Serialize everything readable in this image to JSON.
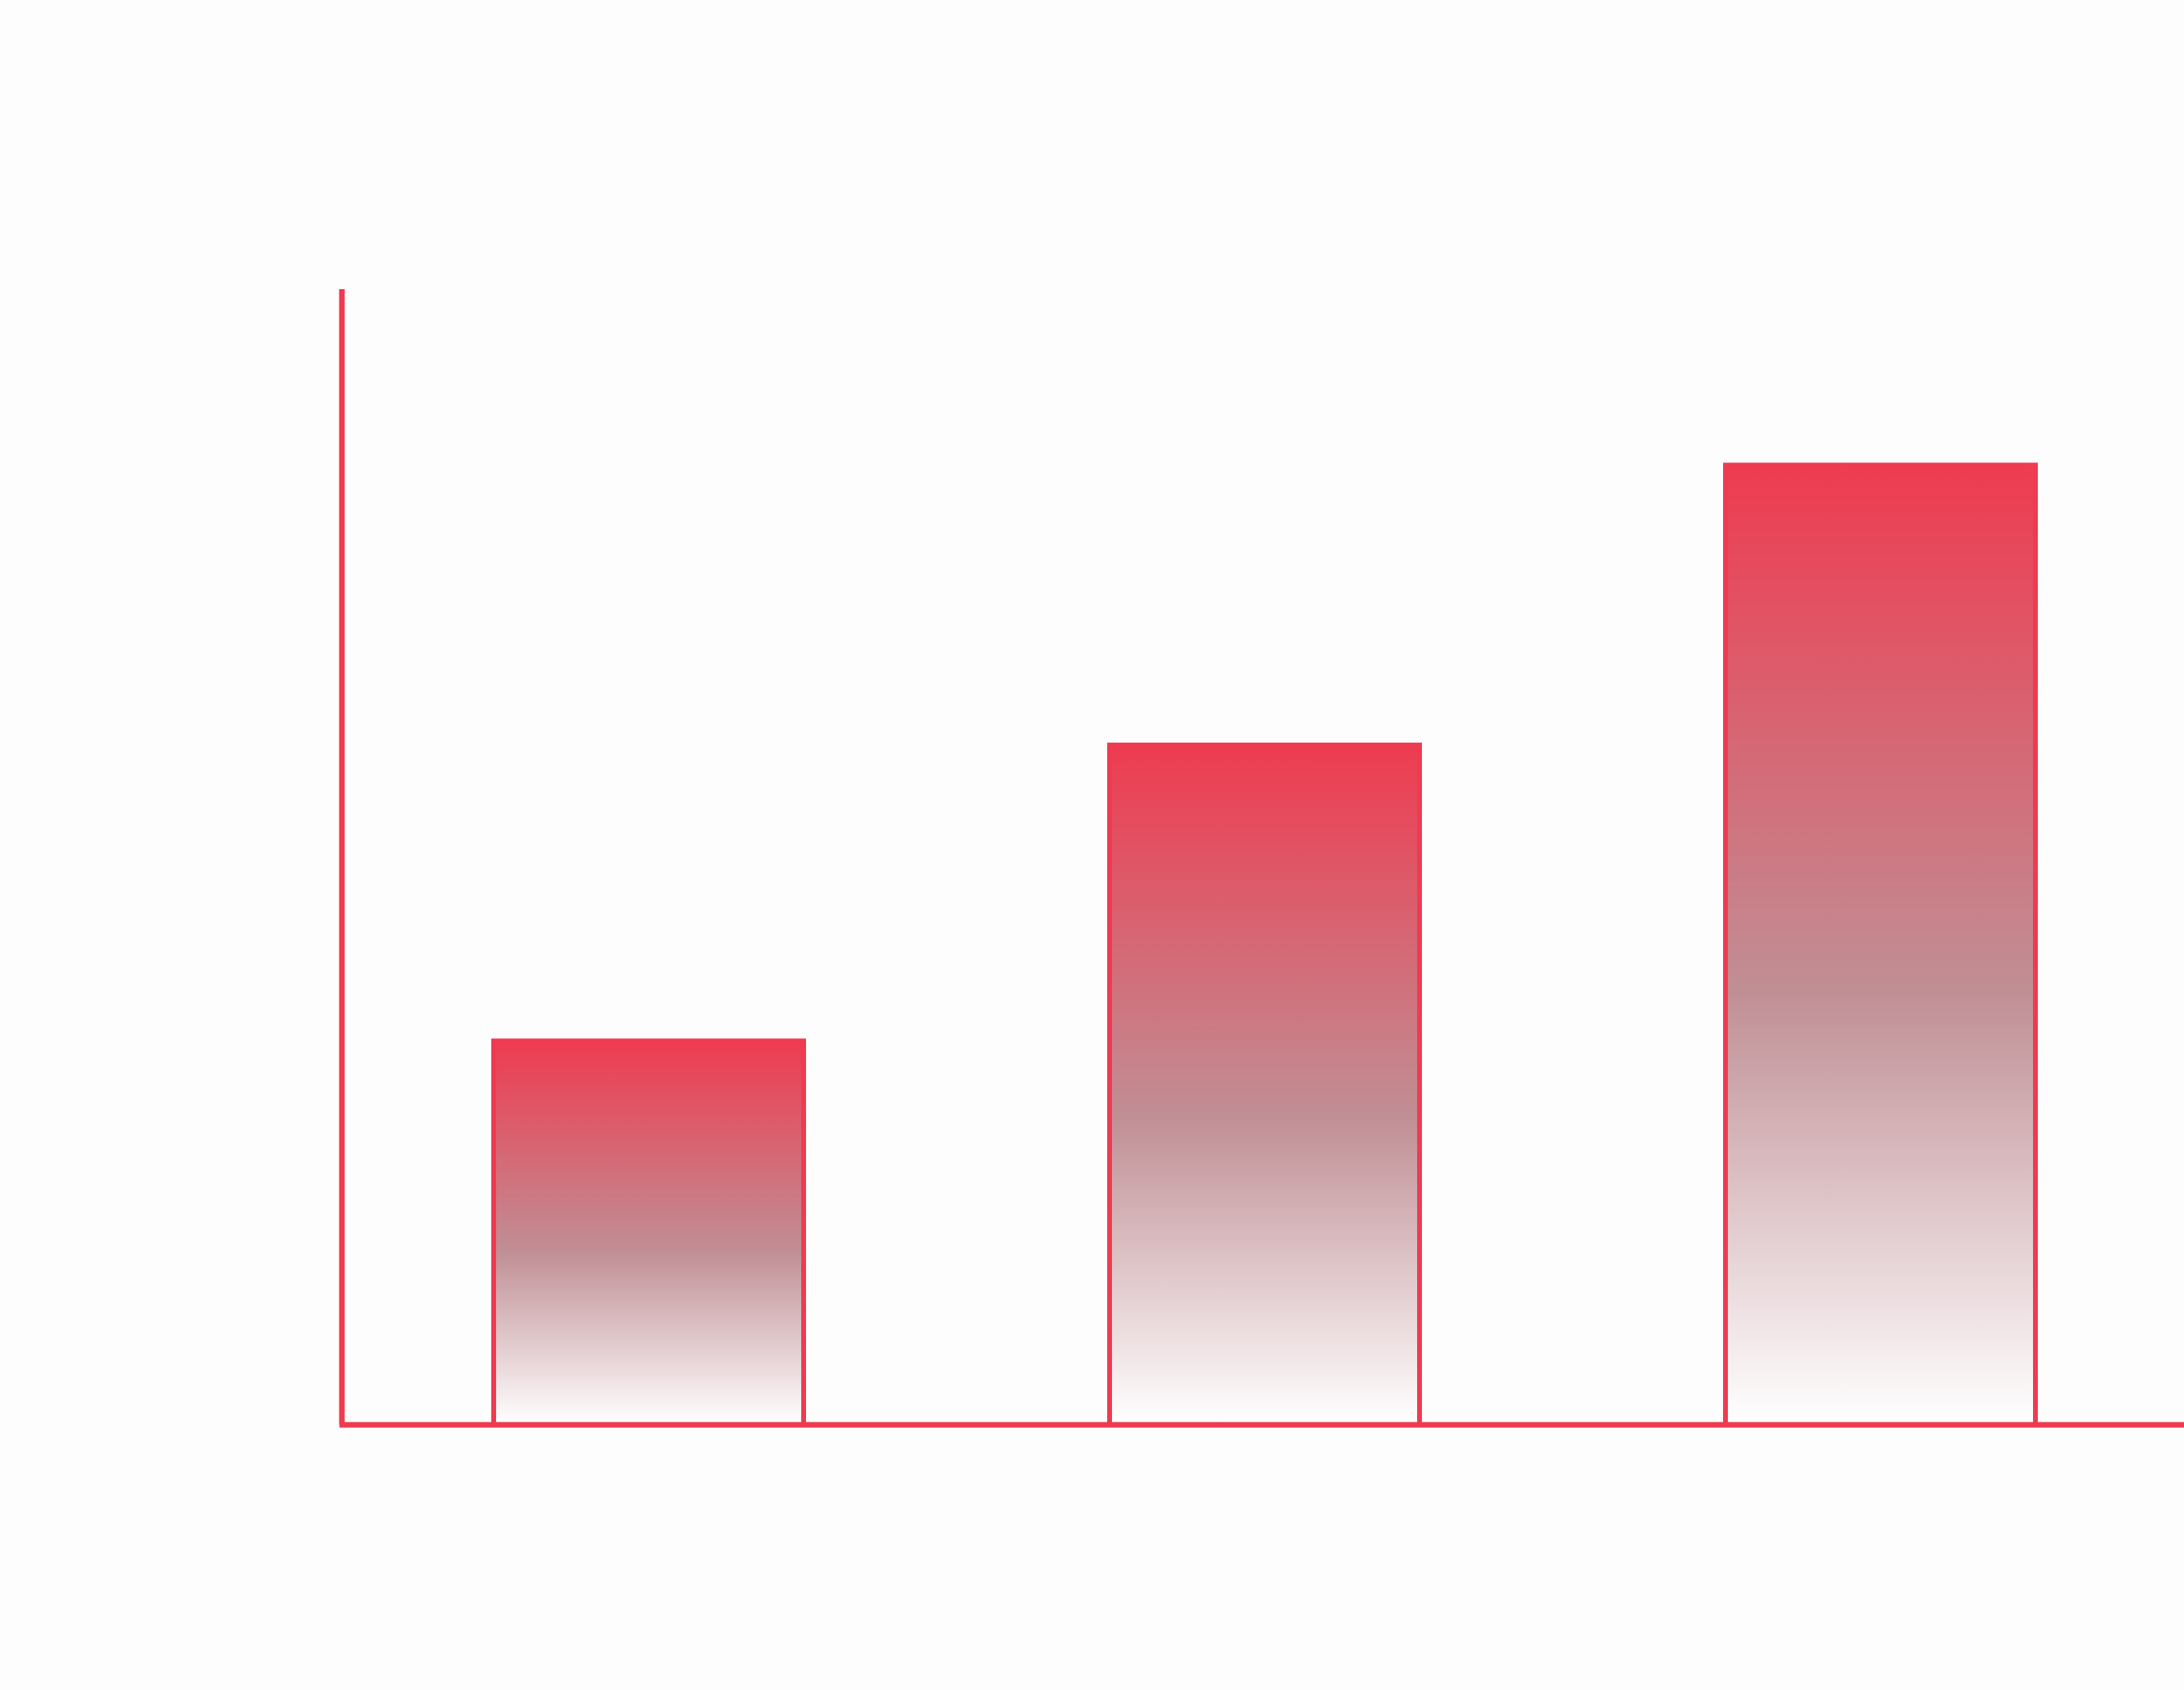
{
  "chart_data": {
    "type": "bar",
    "categories": [
      "",
      "",
      ""
    ],
    "values": [
      48,
      85,
      120
    ],
    "ylim": [
      0,
      142
    ],
    "grid": false,
    "legend": "none",
    "title": "",
    "xlabel": "",
    "ylabel": ""
  },
  "colors": {
    "accent": "#ee3b50",
    "gradient_top": "#ee3b50",
    "gradient_mid": "#c08f95",
    "gradient_bottom": "#ffffff",
    "background": "#fdfdfd"
  }
}
